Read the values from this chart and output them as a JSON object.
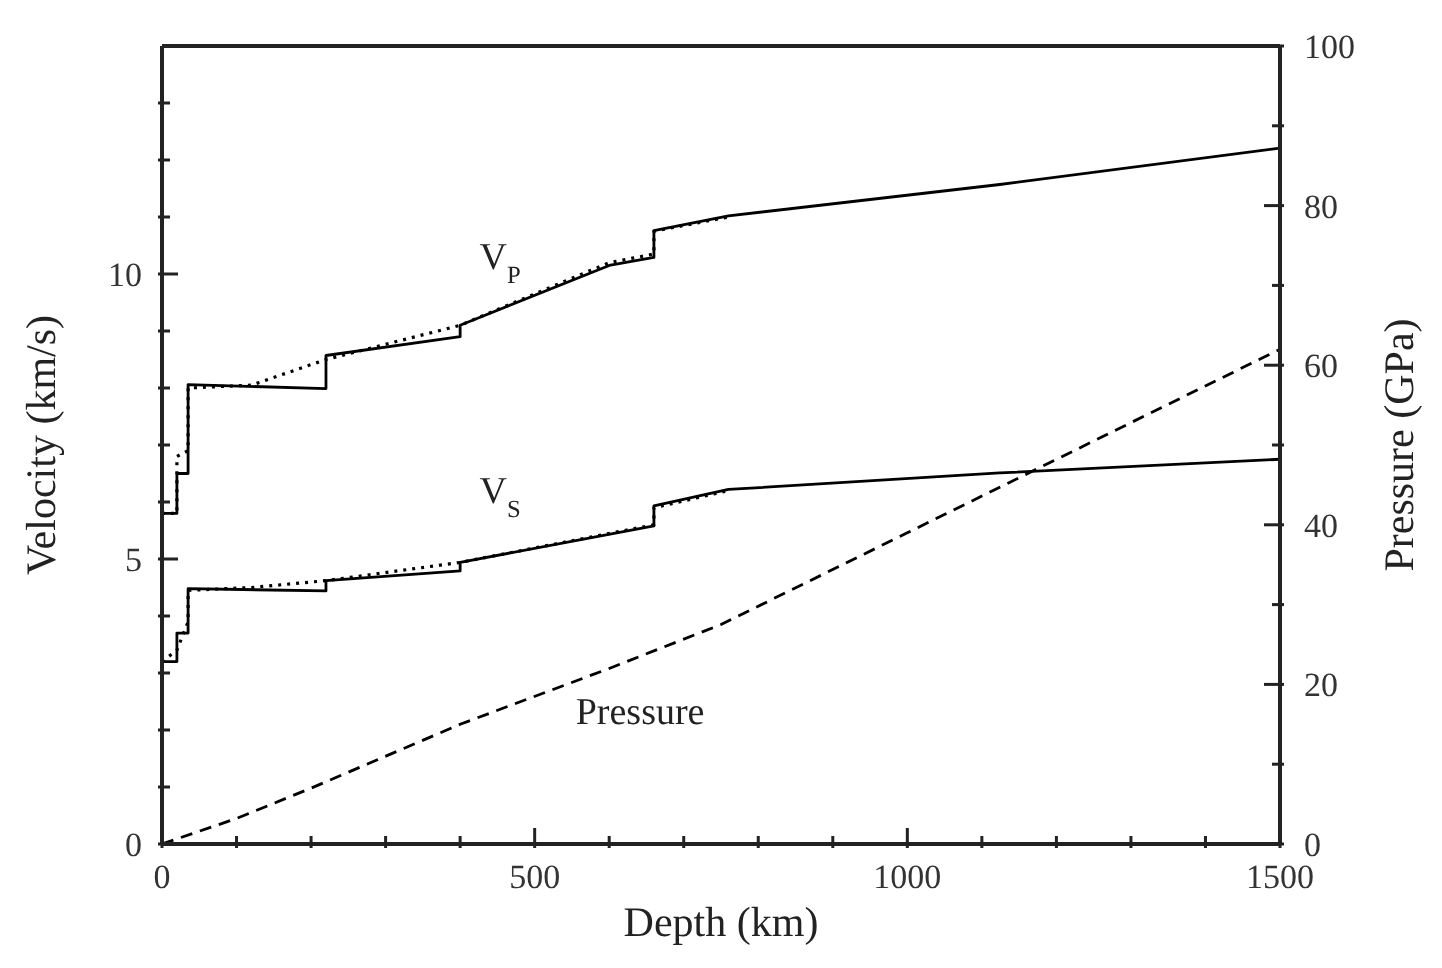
{
  "chart_data": {
    "type": "line",
    "xlabel": "Depth  (km)",
    "ylabel": "Velocity  (km/s)",
    "y2label": "Pressure  (GPa)",
    "xlim": [
      0,
      1500
    ],
    "xticks": [
      0,
      {
        "value": 100,
        "label": null
      },
      {
        "value": 200,
        "label": null
      },
      {
        "value": 300,
        "label": null
      },
      {
        "value": 400,
        "label": null
      },
      500,
      {
        "value": 600,
        "label": null
      },
      {
        "value": 700,
        "label": null
      },
      {
        "value": 800,
        "label": null
      },
      {
        "value": 900,
        "label": null
      },
      1000,
      {
        "value": 1100,
        "label": null
      },
      {
        "value": 1200,
        "label": null
      },
      {
        "value": 1300,
        "label": null
      },
      {
        "value": 1400,
        "label": null
      },
      1500
    ],
    "ylim": [
      0,
      14
    ],
    "yticks": [
      0,
      {
        "value": 1,
        "label": null
      },
      {
        "value": 2,
        "label": null
      },
      {
        "value": 3,
        "label": null
      },
      {
        "value": 4,
        "label": null
      },
      5,
      {
        "value": 6,
        "label": null
      },
      {
        "value": 7,
        "label": null
      },
      {
        "value": 8,
        "label": null
      },
      {
        "value": 9,
        "label": null
      },
      10,
      {
        "value": 11,
        "label": null
      },
      {
        "value": 12,
        "label": null
      },
      {
        "value": 13,
        "label": null
      }
    ],
    "y2lim": [
      0,
      100
    ],
    "y2ticks": [
      0,
      {
        "value": 10,
        "label": null
      },
      20,
      {
        "value": 30,
        "label": null
      },
      40,
      {
        "value": 50,
        "label": null
      },
      60,
      {
        "value": 70,
        "label": null
      },
      80,
      {
        "value": 90,
        "label": null
      },
      100
    ],
    "grid": false,
    "legend": false,
    "series": [
      {
        "name": "V$_{P}$",
        "color": "#000000",
        "line_style": "solid",
        "x": [
          0,
          20,
          20,
          35,
          35,
          220,
          220,
          400,
          400,
          600,
          660,
          660,
          760,
          1124,
          1500
        ],
        "values": [
          5.8,
          5.8,
          6.5,
          6.5,
          8.06,
          7.99,
          8.57,
          8.9,
          9.1,
          10.15,
          10.29,
          10.76,
          11.02,
          11.57,
          12.21
        ]
      },
      {
        "color": "#000000",
        "line_style": "dotted",
        "x": [
          0,
          20,
          20,
          35,
          35,
          120,
          220,
          400,
          600,
          660,
          660,
          760
        ],
        "values": [
          5.8,
          5.8,
          6.8,
          6.9,
          8.0,
          8.05,
          8.5,
          9.1,
          10.2,
          10.35,
          10.75,
          11.0
        ]
      },
      {
        "name": "V$_{S}$",
        "color": "#000000",
        "line_style": "solid",
        "x": [
          0,
          20,
          20,
          35,
          35,
          220,
          220,
          400,
          400,
          660,
          660,
          760,
          1124,
          1500
        ],
        "values": [
          3.2,
          3.2,
          3.7,
          3.7,
          4.48,
          4.44,
          4.62,
          4.79,
          4.94,
          5.58,
          5.93,
          6.22,
          6.51,
          6.75
        ]
      },
      {
        "color": "#000000",
        "line_style": "dotted",
        "x": [
          0,
          20,
          35,
          35,
          120,
          220,
          400,
          660,
          660,
          760
        ],
        "values": [
          3.2,
          3.4,
          3.9,
          4.45,
          4.5,
          4.62,
          4.94,
          5.6,
          5.9,
          6.2
        ]
      },
      {
        "name": "Pressure",
        "color": "#000000",
        "line_style": "dashed",
        "axis": "y2",
        "x": [
          0,
          100,
          200,
          400,
          600,
          750,
          1000,
          1250,
          1500
        ],
        "values": [
          0,
          3.2,
          7,
          15,
          22,
          27.5,
          39,
          50.5,
          62
        ]
      }
    ]
  }
}
